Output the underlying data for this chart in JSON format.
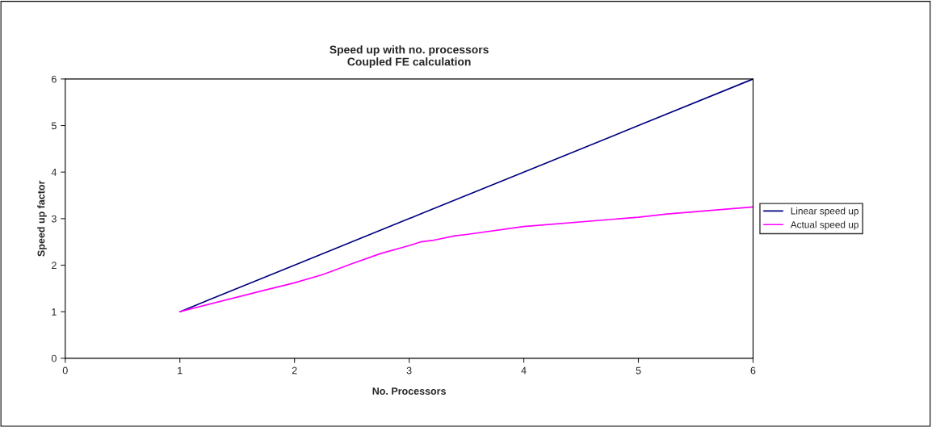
{
  "chart_data": {
    "type": "line",
    "title": "Speed up with no. processors\nCoupled FE calculation",
    "xlabel": "No. Processors",
    "ylabel": "Speed up factor",
    "xlim": [
      0,
      6
    ],
    "xticks": [
      0,
      1,
      2,
      3,
      4,
      5,
      6
    ],
    "ylim": [
      0,
      6
    ],
    "yticks": [
      0,
      1,
      2,
      3,
      4,
      5,
      6
    ],
    "grid": false,
    "legend": "right",
    "marker": "none",
    "line_style": "solid",
    "series": [
      {
        "name": "Linear speed up",
        "color": "#000080",
        "x": [
          1,
          2,
          3,
          3.1,
          3.2,
          3.3,
          3.5,
          4,
          4.1,
          5,
          6
        ],
        "values": [
          1,
          2,
          3,
          3.1,
          3.2,
          3.3,
          3.5,
          4,
          4.1,
          5,
          6
        ]
      },
      {
        "name": "Actual speed up",
        "color": "#ff00ff",
        "x": [
          1,
          1.75,
          2,
          2.25,
          2.5,
          2.75,
          3,
          3.1,
          3.2,
          3.4,
          3.5,
          4,
          5,
          5.25,
          6
        ],
        "values": [
          1,
          1.47,
          1.62,
          1.8,
          2.03,
          2.25,
          2.42,
          2.5,
          2.53,
          2.63,
          2.66,
          2.83,
          3.03,
          3.1,
          3.25
        ]
      }
    ]
  }
}
